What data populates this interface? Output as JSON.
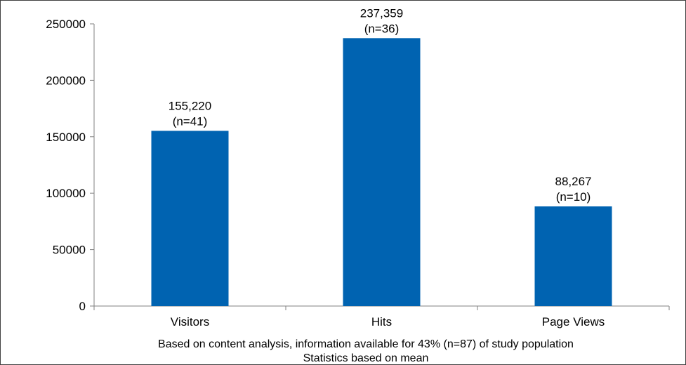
{
  "chart_data": {
    "type": "bar",
    "categories": [
      "Visitors",
      "Hits",
      "Page Views"
    ],
    "values": [
      155220,
      237359,
      88267
    ],
    "value_labels": [
      "155,220",
      "237,359",
      "88,267"
    ],
    "n_labels": [
      "(n=41)",
      "(n=36)",
      "(n=10)"
    ],
    "ylim": [
      0,
      250000
    ],
    "yticks": [
      0,
      50000,
      100000,
      150000,
      200000,
      250000
    ],
    "ytick_labels": [
      "0",
      "50000",
      "100000",
      "150000",
      "200000",
      "250000"
    ],
    "bar_color": "#0063B1",
    "grid": false,
    "legend": "none",
    "xlabel_lines": [
      "Based on content analysis, information available for 43% (n=87) of study population",
      "Statistics based on mean"
    ]
  }
}
